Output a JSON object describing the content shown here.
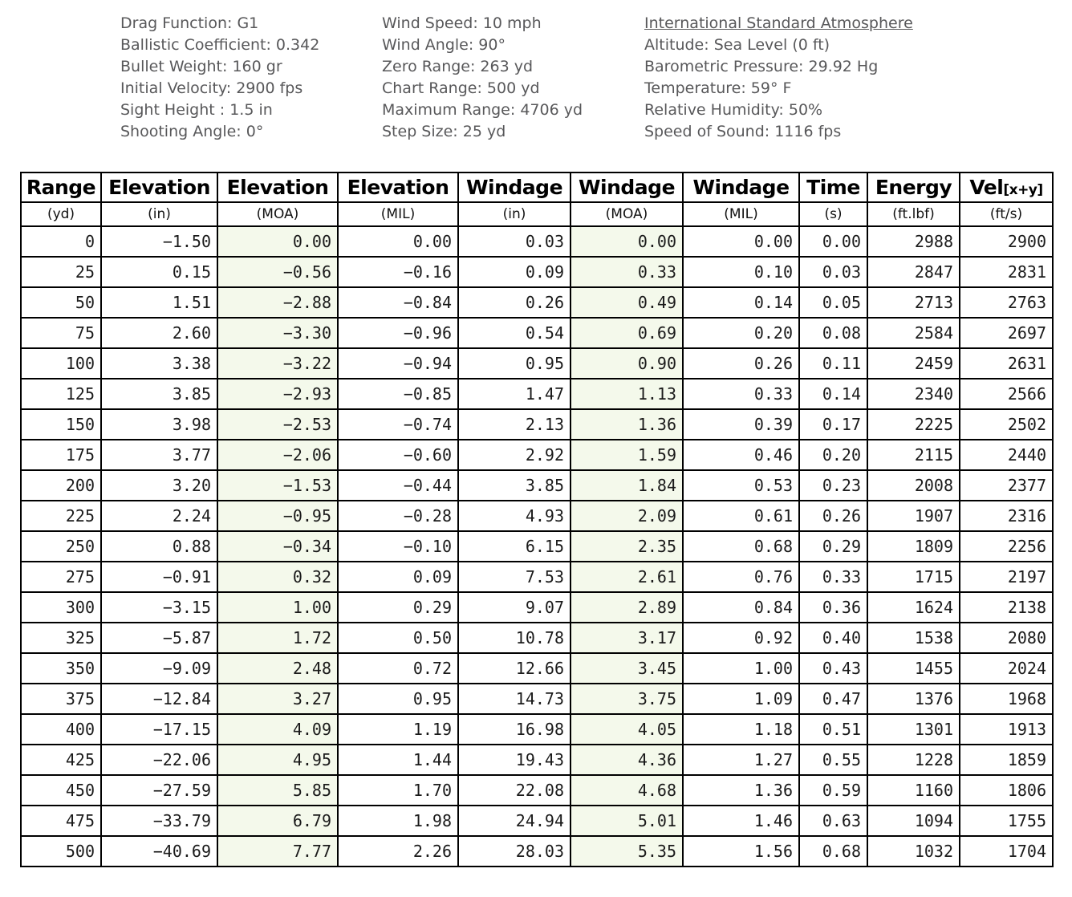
{
  "info": {
    "columns": [
      {
        "name": "projectile-parameters",
        "lines": [
          {
            "text": "Drag Function: G1"
          },
          {
            "text": "Ballistic Coefficient: 0.342"
          },
          {
            "text": "Bullet Weight: 160 gr"
          },
          {
            "text": "Initial Velocity: 2900 fps"
          },
          {
            "text": "Sight Height : 1.5 in"
          },
          {
            "text": "Shooting Angle: 0°"
          }
        ]
      },
      {
        "name": "range-wind-parameters",
        "lines": [
          {
            "text": "Wind Speed: 10 mph"
          },
          {
            "text": "Wind Angle: 90°"
          },
          {
            "text": "Zero Range: 263 yd"
          },
          {
            "text": "Chart Range: 500 yd"
          },
          {
            "text": "Maximum Range: 4706 yd"
          },
          {
            "text": "Step Size: 25 yd"
          }
        ]
      },
      {
        "name": "atmosphere-parameters",
        "lines": [
          {
            "text": "International Standard Atmosphere",
            "underline": true
          },
          {
            "text": "Altitude: Sea Level (0 ft)"
          },
          {
            "text": "Barometric Pressure: 29.92 Hg"
          },
          {
            "text": "Temperature: 59° F"
          },
          {
            "text": "Relative Humidity: 50%"
          },
          {
            "text": "Speed of Sound: 1116 fps"
          }
        ]
      }
    ]
  },
  "chart_data": {
    "type": "table",
    "title": "Ballistic trajectory chart, 0-500 yd in 25 yd steps",
    "columns": [
      {
        "id": "range",
        "label": "Range",
        "sub": "",
        "unit": "(yd)"
      },
      {
        "id": "elevation-in",
        "label": "Elevation",
        "sub": "",
        "unit": "(in)"
      },
      {
        "id": "elevation-moa",
        "label": "Elevation",
        "sub": "",
        "unit": "(MOA)",
        "tinted": true
      },
      {
        "id": "elevation-mil",
        "label": "Elevation",
        "sub": "",
        "unit": "(MIL)"
      },
      {
        "id": "windage-in",
        "label": "Windage",
        "sub": "",
        "unit": "(in)"
      },
      {
        "id": "windage-moa",
        "label": "Windage",
        "sub": "",
        "unit": "(MOA)",
        "tinted": true
      },
      {
        "id": "windage-mil",
        "label": "Windage",
        "sub": "",
        "unit": "(MIL)"
      },
      {
        "id": "time",
        "label": "Time",
        "sub": "",
        "unit": "(s)"
      },
      {
        "id": "energy",
        "label": "Energy",
        "sub": "",
        "unit": "(ft.lbf)"
      },
      {
        "id": "velocity",
        "label": "Vel",
        "sub": "[x+y]",
        "unit": "(ft/s)"
      }
    ],
    "rows": [
      [
        "0",
        "−1.50",
        "0.00",
        "0.00",
        "0.03",
        "0.00",
        "0.00",
        "0.00",
        "2988",
        "2900"
      ],
      [
        "25",
        "0.15",
        "−0.56",
        "−0.16",
        "0.09",
        "0.33",
        "0.10",
        "0.03",
        "2847",
        "2831"
      ],
      [
        "50",
        "1.51",
        "−2.88",
        "−0.84",
        "0.26",
        "0.49",
        "0.14",
        "0.05",
        "2713",
        "2763"
      ],
      [
        "75",
        "2.60",
        "−3.30",
        "−0.96",
        "0.54",
        "0.69",
        "0.20",
        "0.08",
        "2584",
        "2697"
      ],
      [
        "100",
        "3.38",
        "−3.22",
        "−0.94",
        "0.95",
        "0.90",
        "0.26",
        "0.11",
        "2459",
        "2631"
      ],
      [
        "125",
        "3.85",
        "−2.93",
        "−0.85",
        "1.47",
        "1.13",
        "0.33",
        "0.14",
        "2340",
        "2566"
      ],
      [
        "150",
        "3.98",
        "−2.53",
        "−0.74",
        "2.13",
        "1.36",
        "0.39",
        "0.17",
        "2225",
        "2502"
      ],
      [
        "175",
        "3.77",
        "−2.06",
        "−0.60",
        "2.92",
        "1.59",
        "0.46",
        "0.20",
        "2115",
        "2440"
      ],
      [
        "200",
        "3.20",
        "−1.53",
        "−0.44",
        "3.85",
        "1.84",
        "0.53",
        "0.23",
        "2008",
        "2377"
      ],
      [
        "225",
        "2.24",
        "−0.95",
        "−0.28",
        "4.93",
        "2.09",
        "0.61",
        "0.26",
        "1907",
        "2316"
      ],
      [
        "250",
        "0.88",
        "−0.34",
        "−0.10",
        "6.15",
        "2.35",
        "0.68",
        "0.29",
        "1809",
        "2256"
      ],
      [
        "275",
        "−0.91",
        "0.32",
        "0.09",
        "7.53",
        "2.61",
        "0.76",
        "0.33",
        "1715",
        "2197"
      ],
      [
        "300",
        "−3.15",
        "1.00",
        "0.29",
        "9.07",
        "2.89",
        "0.84",
        "0.36",
        "1624",
        "2138"
      ],
      [
        "325",
        "−5.87",
        "1.72",
        "0.50",
        "10.78",
        "3.17",
        "0.92",
        "0.40",
        "1538",
        "2080"
      ],
      [
        "350",
        "−9.09",
        "2.48",
        "0.72",
        "12.66",
        "3.45",
        "1.00",
        "0.43",
        "1455",
        "2024"
      ],
      [
        "375",
        "−12.84",
        "3.27",
        "0.95",
        "14.73",
        "3.75",
        "1.09",
        "0.47",
        "1376",
        "1968"
      ],
      [
        "400",
        "−17.15",
        "4.09",
        "1.19",
        "16.98",
        "4.05",
        "1.18",
        "0.51",
        "1301",
        "1913"
      ],
      [
        "425",
        "−22.06",
        "4.95",
        "1.44",
        "19.43",
        "4.36",
        "1.27",
        "0.55",
        "1228",
        "1859"
      ],
      [
        "450",
        "−27.59",
        "5.85",
        "1.70",
        "22.08",
        "4.68",
        "1.36",
        "0.59",
        "1160",
        "1806"
      ],
      [
        "475",
        "−33.79",
        "6.79",
        "1.98",
        "24.94",
        "5.01",
        "1.46",
        "0.63",
        "1094",
        "1755"
      ],
      [
        "500",
        "−40.69",
        "7.77",
        "2.26",
        "28.03",
        "5.35",
        "1.56",
        "0.68",
        "1032",
        "1704"
      ]
    ]
  },
  "colors": {
    "highlight_column_bg": "#f4f9eb",
    "info_text": "#58585a",
    "table_border": "#000000"
  }
}
